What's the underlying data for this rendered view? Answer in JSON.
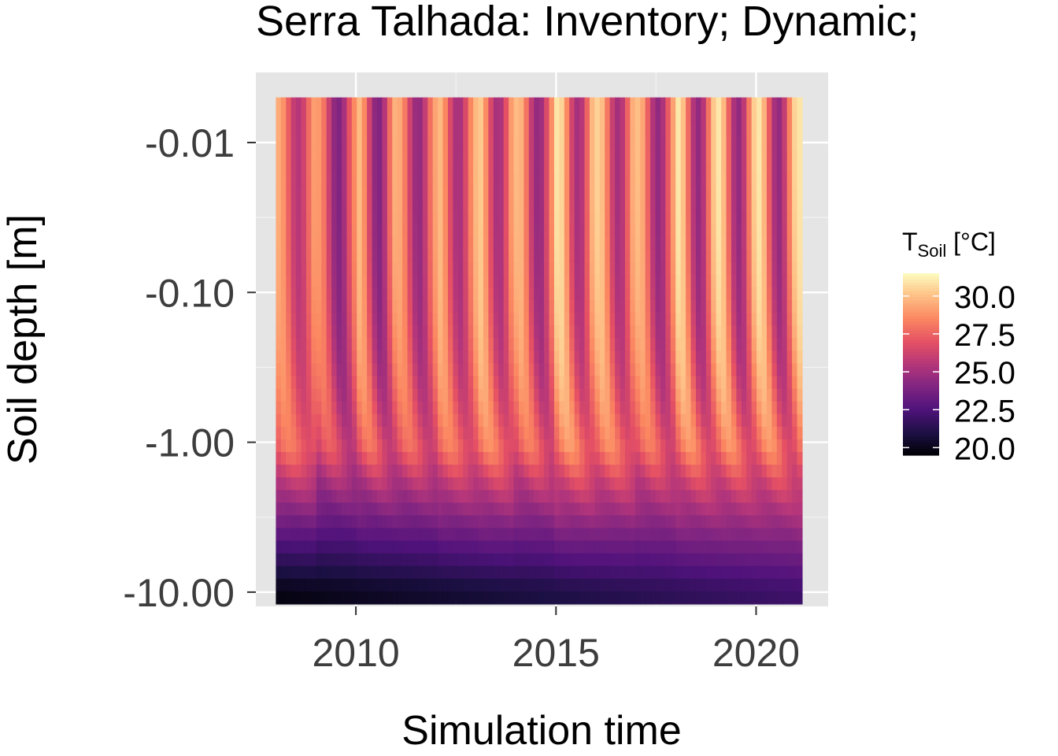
{
  "chart_data": {
    "type": "heatmap",
    "title": "Serra Talhada: Inventory; Dynamic;",
    "xlabel": "Simulation time",
    "ylabel": "Soil depth [m]",
    "x_ticks": [
      "2010",
      "2015",
      "2020"
    ],
    "x_tick_values": [
      2010,
      2015,
      2020
    ],
    "y_ticks": [
      "-0.01",
      "-0.10",
      "-1.00",
      "-10.00"
    ],
    "y_tick_values": [
      -0.01,
      -0.1,
      -1.0,
      -10.0
    ],
    "y_scale": "log (negative depth)",
    "xlim": [
      2007.5,
      2021.8
    ],
    "x_data_range": [
      2008.0,
      2021.15
    ],
    "depth_range": [
      -0.005,
      -12.0
    ],
    "colormap": "magma",
    "legend": {
      "title_main": "T",
      "title_sub": "Soil",
      "title_unit": " [°C]",
      "range": [
        19.5,
        31.5
      ],
      "ticks": [
        "20.0",
        "22.5",
        "25.0",
        "27.5",
        "30.0"
      ],
      "tick_values": [
        20.0,
        22.5,
        25.0,
        27.5,
        30.0
      ],
      "placement": "right"
    },
    "grid": true,
    "panel_background": "#e5e5e5",
    "surface_temperature_by_year": {
      "2008": [
        25.5,
        29.5
      ],
      "2009": [
        24.0,
        29.0
      ],
      "2010": [
        24.0,
        30.0
      ],
      "2011": [
        24.5,
        29.5
      ],
      "2012": [
        25.0,
        30.0
      ],
      "2013": [
        25.0,
        30.5
      ],
      "2014": [
        24.5,
        30.0
      ],
      "2015": [
        25.0,
        31.0
      ],
      "2016": [
        25.0,
        30.5
      ],
      "2017": [
        24.5,
        30.0
      ],
      "2018": [
        24.5,
        31.0
      ],
      "2019": [
        24.5,
        31.0
      ],
      "2020": [
        24.5,
        31.0
      ],
      "2021": [
        25.0,
        31.0
      ]
    },
    "deep_temperature": {
      "depth_m": -10.0,
      "start": 19.8,
      "end": 22.0
    }
  }
}
